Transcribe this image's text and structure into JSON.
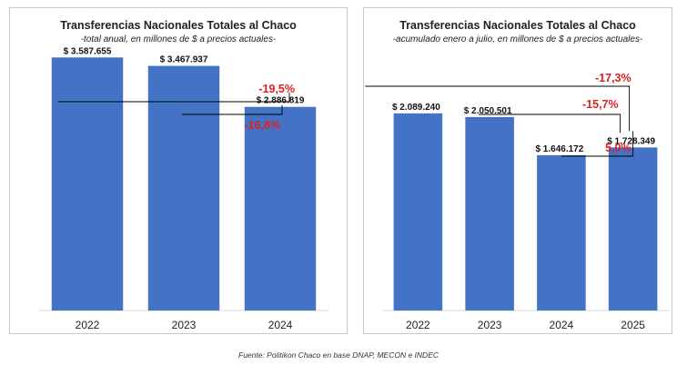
{
  "colors": {
    "bar": "#4472c4",
    "pct": "#e02020",
    "label": "#111111",
    "axis": "#d9d9d9",
    "connector": "#000000"
  },
  "chart_data": [
    {
      "type": "bar",
      "title": "Transferencias Nacionales Totales al Chaco",
      "subtitle": "-total anual, en millones de $ a precios actuales-",
      "categories": [
        "2022",
        "2023",
        "2024"
      ],
      "values": [
        3587655,
        3467937,
        2886819
      ],
      "data_labels": [
        "$ 3.587.655",
        "$ 3.467.937",
        "$ 2.886.819"
      ],
      "annotations": [
        {
          "from": "2023",
          "to": "2024",
          "text": "-16,8%"
        },
        {
          "from": "2022",
          "to": "2024",
          "text": "-19,5%"
        }
      ],
      "ylim": [
        0,
        3900000
      ],
      "grid": false
    },
    {
      "type": "bar",
      "title": "Transferencias Nacionales Totales al Chaco",
      "subtitle": "-acumulado enero a julio, en millones de $ a precios actuales-",
      "categories": [
        "2022",
        "2023",
        "2024",
        "2025"
      ],
      "values": [
        2089240,
        2050501,
        1646172,
        1728349
      ],
      "data_labels": [
        "$ 2.089.240",
        "$ 2.050.501",
        "$ 1.646.172",
        "$ 1.728.349"
      ],
      "annotations": [
        {
          "from": "2024",
          "to": "2025",
          "text": "5,0%"
        },
        {
          "from": "2023",
          "to": "2025",
          "text": "-15,7%"
        },
        {
          "from": "2022",
          "to": "2025",
          "text": "-17,3%"
        }
      ],
      "ylim": [
        0,
        2800000
      ],
      "grid": false
    }
  ],
  "footer": "Fuente: Politikon Chaco en base DNAP, MECON e INDEC"
}
